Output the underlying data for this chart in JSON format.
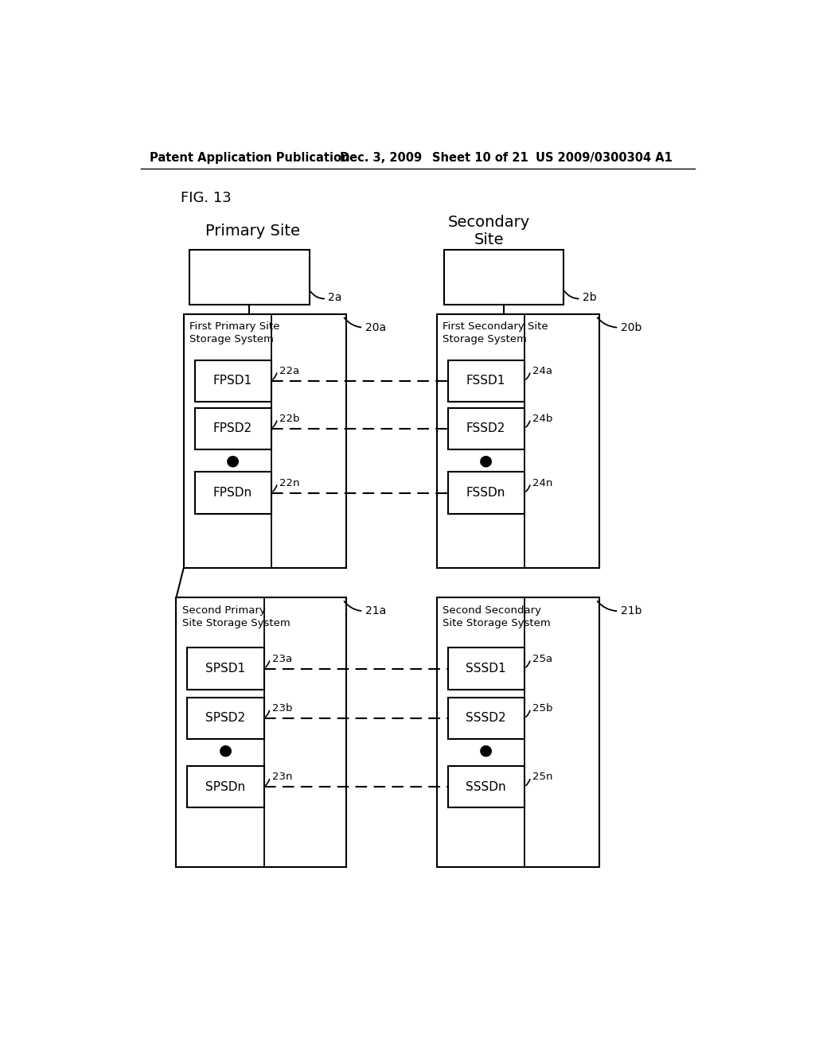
{
  "bg_color": "#ffffff",
  "header_line1": "Patent Application Publication",
  "header_date": "Dec. 3, 2009",
  "header_sheet": "Sheet 10 of 21",
  "header_patent": "US 2009/0300304 A1",
  "fig_label": "FIG. 13",
  "primary_site_label": "Primary Site",
  "secondary_site_label": "Secondary\nSite",
  "host_2a_label": "2a",
  "host_2b_label": "2b",
  "box_20a_label": "20a",
  "box_20b_label": "20b",
  "box_21a_label": "21a",
  "box_21b_label": "21b",
  "fpss_title": "First Primary Site\nStorage System",
  "fsss_title": "First Secondary Site\nStorage System",
  "spss_title": "Second Primary\nSite Storage System",
  "ssss_title": "Second Secondary\nSite Storage System",
  "fpsd_boxes": [
    "FPSD1",
    "FPSD2",
    "FPSDn"
  ],
  "fssd_boxes": [
    "FSSD1",
    "FSSD2",
    "FSSDn"
  ],
  "spsd_boxes": [
    "SPSD1",
    "SPSD2",
    "SPSDn"
  ],
  "sssd_boxes": [
    "SSSD1",
    "SSSD2",
    "SSSDn"
  ],
  "fpsd_labels": [
    "22a",
    "22b",
    "22n"
  ],
  "fssd_labels": [
    "24a",
    "24b",
    "24n"
  ],
  "spsd_labels": [
    "23a",
    "23b",
    "23n"
  ],
  "sssd_labels": [
    "25a",
    "25b",
    "25n"
  ]
}
